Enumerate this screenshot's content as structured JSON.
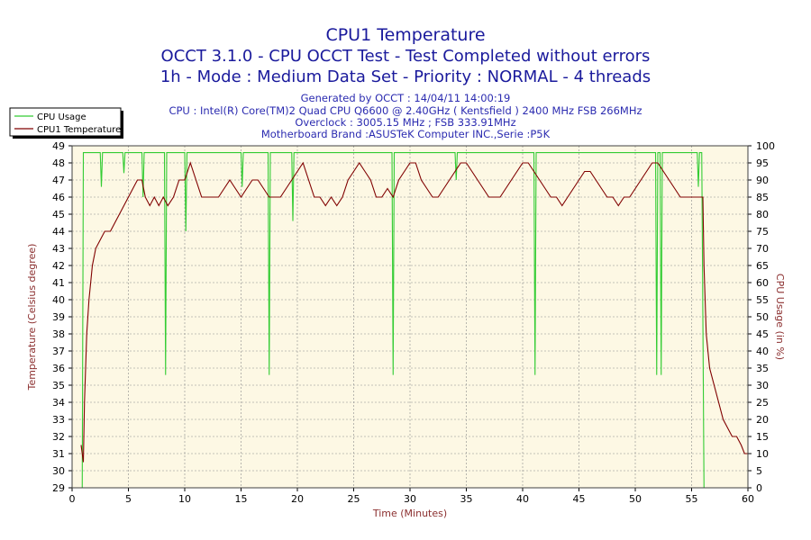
{
  "header": {
    "title": "CPU1 Temperature",
    "subtitle1": "OCCT 3.1.0 - CPU OCCT Test - Test Completed without errors",
    "subtitle2": "1h - Mode : Medium Data Set - Priority : NORMAL - 4 threads"
  },
  "info": {
    "generated": "Generated by OCCT : 14/04/11 14:00:19",
    "cpu": "CPU : Intel(R) Core(TM)2 Quad CPU Q6600 @ 2.40GHz ( Kentsfield ) 2400 MHz FSB 266MHz",
    "overclock": "Overclock : 3005.15 MHz ; FSB 333.91MHz",
    "motherboard": "Motherboard Brand :ASUSTeK Computer INC.,Serie :P5K"
  },
  "colors": {
    "background": "#ffffff",
    "plot_background": "#fdf8e4",
    "grid": "#8c8c8c",
    "usage_line": "#33cc33",
    "temp_line": "#800000",
    "title_text": "#1a1a9c",
    "axis_label": "#8b2f2f"
  },
  "chart_data": {
    "type": "line",
    "xlabel": "Time (Minutes)",
    "ylabel_left": "Temperature (Celsius degree)",
    "ylabel_right": "CPU Usage (in %)",
    "xlim": [
      0,
      60
    ],
    "ylim_left": [
      29,
      49
    ],
    "ylim_right": [
      0,
      100
    ],
    "x_ticks": [
      0,
      5,
      10,
      15,
      20,
      25,
      30,
      35,
      40,
      45,
      50,
      55,
      60
    ],
    "y_left_ticks": [
      29,
      30,
      31,
      32,
      33,
      34,
      35,
      36,
      37,
      38,
      39,
      40,
      41,
      42,
      43,
      44,
      45,
      46,
      47,
      48,
      49
    ],
    "y_right_ticks": [
      0,
      5,
      10,
      15,
      20,
      25,
      30,
      35,
      40,
      45,
      50,
      55,
      60,
      65,
      70,
      75,
      80,
      85,
      90,
      95,
      100
    ],
    "grid": true,
    "legend_position": "top-left",
    "legend": [
      "CPU Usage",
      "CPU1 Temperature"
    ],
    "series": [
      {
        "name": "CPU Usage",
        "axis": "right",
        "x": [
          0,
          0.5,
          0.9,
          1.0,
          1.1,
          1.3,
          2.5,
          2.6,
          2.7,
          4.5,
          4.6,
          4.7,
          6.2,
          6.3,
          6.4,
          8.2,
          8.3,
          8.4,
          10,
          10.1,
          10.2,
          10.5,
          15,
          15.1,
          15.2,
          17.4,
          17.5,
          17.6,
          19.5,
          19.6,
          19.7,
          28.4,
          28.5,
          28.6,
          34,
          34.1,
          34.2,
          41,
          41.1,
          41.2,
          51.8,
          51.9,
          52,
          52.2,
          52.3,
          52.4,
          55.5,
          55.6,
          55.7,
          55.9,
          56,
          56.1,
          56.3,
          60
        ],
        "values": [
          0,
          0,
          0,
          98,
          98,
          98,
          98,
          88,
          98,
          98,
          92,
          98,
          98,
          85,
          98,
          98,
          33,
          98,
          98,
          75,
          98,
          98,
          98,
          88,
          98,
          98,
          33,
          98,
          98,
          78,
          98,
          98,
          33,
          98,
          98,
          90,
          98,
          98,
          33,
          98,
          98,
          33,
          98,
          98,
          33,
          98,
          98,
          88,
          98,
          98,
          50,
          0,
          0,
          0
        ]
      },
      {
        "name": "CPU1 Temperature",
        "axis": "left",
        "x": [
          0.8,
          0.9,
          1.0,
          1.1,
          1.3,
          1.5,
          1.8,
          2.1,
          2.5,
          2.9,
          3.4,
          3.8,
          4.2,
          4.6,
          5.0,
          5.4,
          5.8,
          6.2,
          6.5,
          6.9,
          7.3,
          7.7,
          8.1,
          8.5,
          9.0,
          9.5,
          10.0,
          10.5,
          11.0,
          11.5,
          12.0,
          12.5,
          13.0,
          13.5,
          14.0,
          14.5,
          15.0,
          15.5,
          16.0,
          16.5,
          17.0,
          17.5,
          18.0,
          18.5,
          19.0,
          19.5,
          20.0,
          20.5,
          21.0,
          21.5,
          22.0,
          22.5,
          23.0,
          23.5,
          24.0,
          24.5,
          25.0,
          25.5,
          26.0,
          26.5,
          27.0,
          27.5,
          28.0,
          28.5,
          29.0,
          29.5,
          30.0,
          30.5,
          31.0,
          31.5,
          32.0,
          32.5,
          33.0,
          33.5,
          34.0,
          34.5,
          35.0,
          35.5,
          36.0,
          36.5,
          37.0,
          37.5,
          38.0,
          38.5,
          39.0,
          39.5,
          40.0,
          40.5,
          41.0,
          41.5,
          42.0,
          42.5,
          43.0,
          43.5,
          44.0,
          44.5,
          45.0,
          45.5,
          46.0,
          46.5,
          47.0,
          47.5,
          48.0,
          48.5,
          49.0,
          49.5,
          50.0,
          50.5,
          51.0,
          51.5,
          52.0,
          52.5,
          53.0,
          53.5,
          54.0,
          54.5,
          55.0,
          55.5,
          56.0,
          56.1,
          56.3,
          56.6,
          57.0,
          57.4,
          57.8,
          58.2,
          58.6,
          59.0,
          59.4,
          59.7,
          60.0
        ],
        "values": [
          31.5,
          31,
          30.5,
          34,
          38,
          40,
          42,
          43,
          43.5,
          44,
          44,
          44.5,
          45,
          45.5,
          46,
          46.5,
          47,
          47,
          46,
          45.5,
          46,
          45.5,
          46,
          45.5,
          46,
          47,
          47,
          48,
          47,
          46,
          46,
          46,
          46,
          46.5,
          47,
          46.5,
          46,
          46.5,
          47,
          47,
          46.5,
          46,
          46,
          46,
          46.5,
          47,
          47.5,
          48,
          47,
          46,
          46,
          45.5,
          46,
          45.5,
          46,
          47,
          47.5,
          48,
          47.5,
          47,
          46,
          46,
          46.5,
          46,
          47,
          47.5,
          48,
          48,
          47,
          46.5,
          46,
          46,
          46.5,
          47,
          47.5,
          48,
          48,
          47.5,
          47,
          46.5,
          46,
          46,
          46,
          46.5,
          47,
          47.5,
          48,
          48,
          47.5,
          47,
          46.5,
          46,
          46,
          45.5,
          46,
          46.5,
          47,
          47.5,
          47.5,
          47,
          46.5,
          46,
          46,
          45.5,
          46,
          46,
          46.5,
          47,
          47.5,
          48,
          48,
          47.5,
          47,
          46.5,
          46,
          46,
          46,
          46,
          46,
          42,
          38,
          36,
          35,
          34,
          33,
          32.5,
          32,
          32,
          31.5,
          31,
          31
        ]
      }
    ]
  }
}
